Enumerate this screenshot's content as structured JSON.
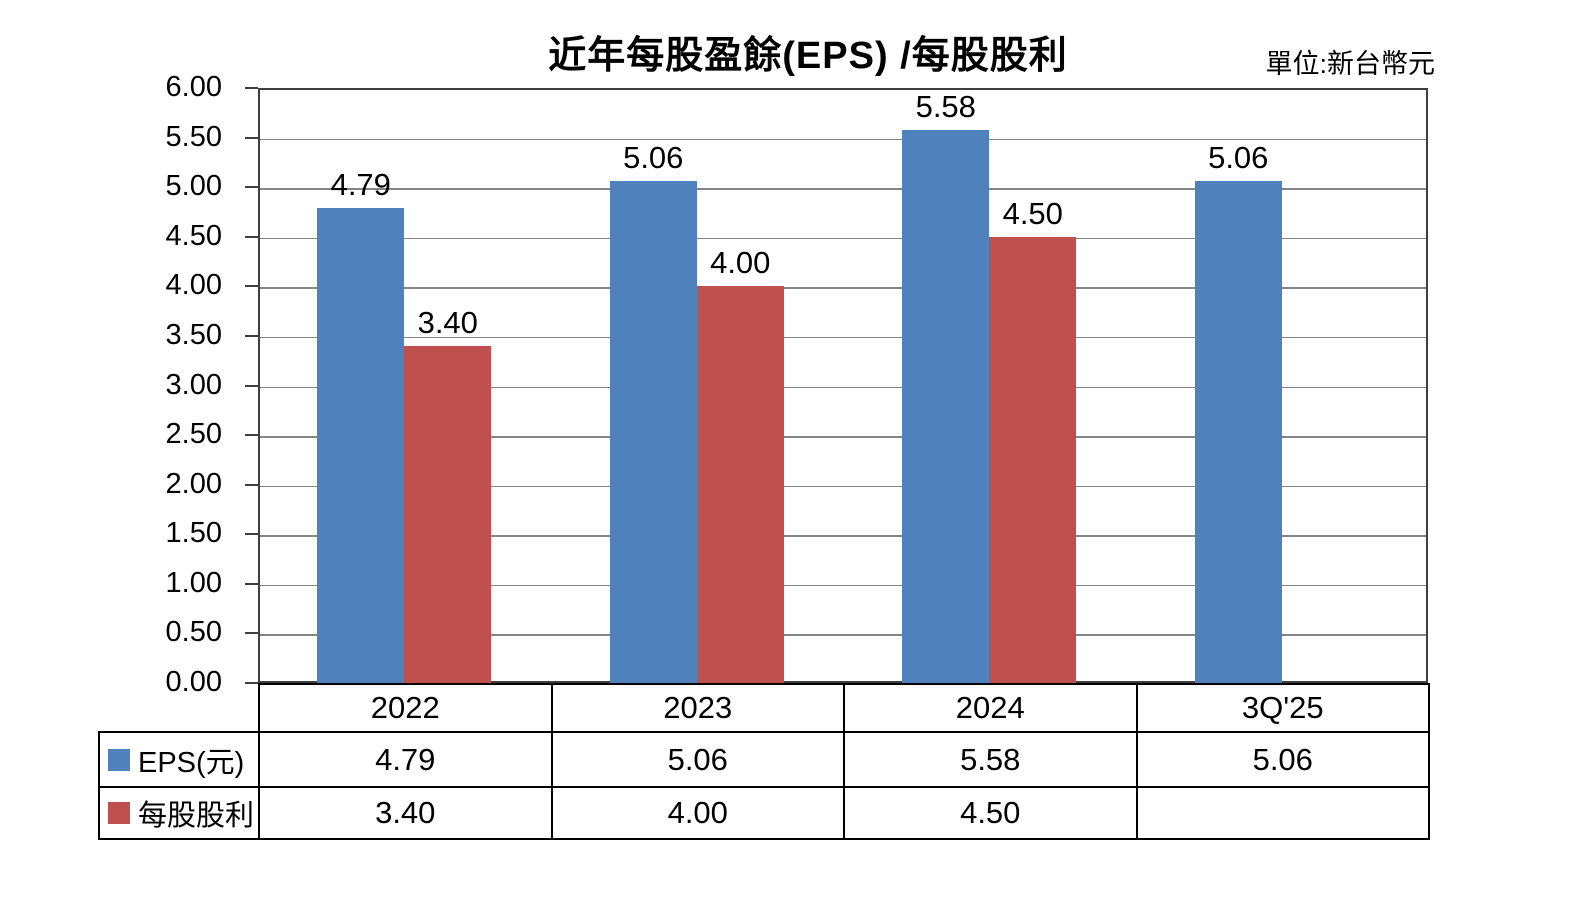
{
  "title": "近年每股盈餘(EPS) /每股股利",
  "unit_label": "單位:新台幣元",
  "colors": {
    "eps": "#4F81BD",
    "dividend": "#C0504D",
    "gridline": "#858585",
    "plot_border": "#3f3f3f",
    "table_border": "#000000",
    "text": "#000000"
  },
  "chart_data": {
    "type": "bar",
    "categories": [
      "2022",
      "2023",
      "2024",
      "3Q'25"
    ],
    "series": [
      {
        "name": "EPS(元)",
        "key": "eps",
        "color": "#4F81BD",
        "values": [
          4.79,
          5.06,
          5.58,
          5.06
        ]
      },
      {
        "name": "每股股利",
        "key": "dividend",
        "color": "#C0504D",
        "values": [
          3.4,
          4.0,
          4.5,
          null
        ]
      }
    ],
    "title": "近年每股盈餘(EPS) /每股股利",
    "xlabel": "",
    "ylabel": "",
    "ylim": [
      0,
      6
    ],
    "ytick_step": 0.5,
    "value_label_decimals": 2,
    "grid": true,
    "legend_position": "table-left-column"
  }
}
